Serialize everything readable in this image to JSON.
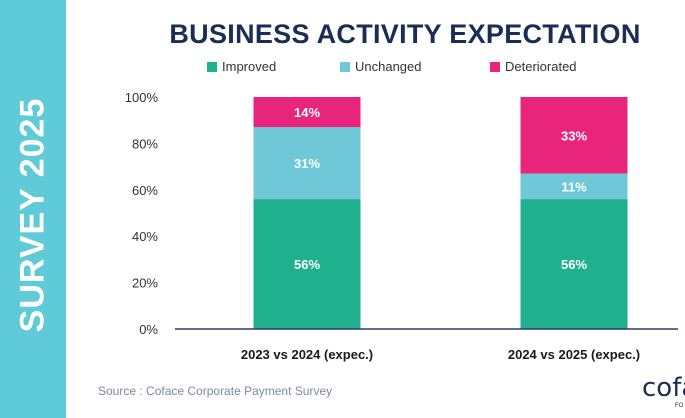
{
  "side_label": "SURVEY 2025",
  "source_text": "Source : Coface Corporate Payment Survey",
  "logo": {
    "word": "cofa",
    "sub": "FO"
  },
  "colors": {
    "improved": "#1fb08e",
    "unchanged": "#6fc8d8",
    "deteriorated": "#e8257a",
    "title": "#1a2e55",
    "side_band": "#5fcad8"
  },
  "chart_data": {
    "type": "bar",
    "stacked": true,
    "title": "BUSINESS ACTIVITY EXPECTATION",
    "categories": [
      "2023 vs 2024 (expec.)",
      "2024 vs 2025 (expec.)"
    ],
    "series": [
      {
        "name": "Improved",
        "values": [
          56,
          56
        ],
        "labels": [
          "56%",
          "56%"
        ]
      },
      {
        "name": "Unchanged",
        "values": [
          31,
          11
        ],
        "labels": [
          "31%",
          "11%"
        ]
      },
      {
        "name": "Deteriorated",
        "values": [
          14,
          33
        ],
        "labels": [
          "14%",
          "33%"
        ]
      }
    ],
    "ylim": [
      0,
      100
    ],
    "yticks": [
      "0%",
      "20%",
      "40%",
      "60%",
      "80%",
      "100%"
    ],
    "legend_position": "top",
    "xlabel": "",
    "ylabel": ""
  }
}
